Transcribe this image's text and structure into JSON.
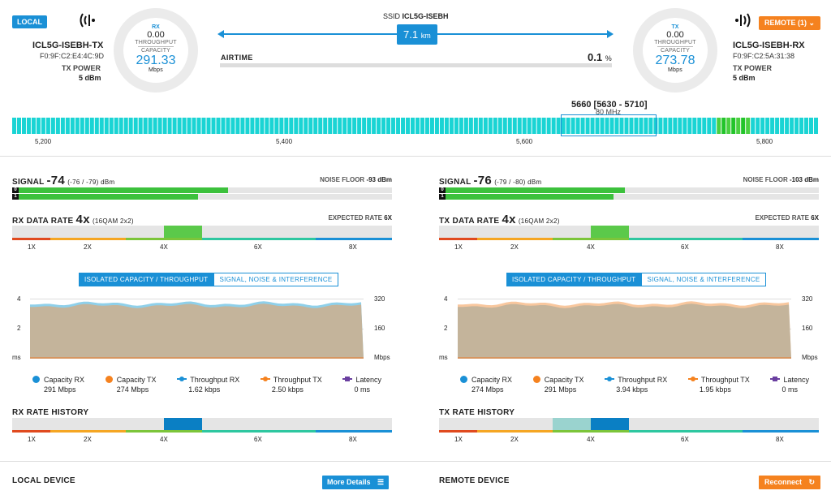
{
  "local": {
    "badge": "LOCAL",
    "name": "ICL5G-ISEBH-TX",
    "mac": "F0:9F:C2:E4:4C:9D",
    "tx_power_label": "TX POWER",
    "tx_power": "5 dBm",
    "gauge": {
      "dir": "RX",
      "throughput": "0.00",
      "throughput_label": "THROUGHPUT",
      "capacity_label": "CAPACITY",
      "capacity": "291.33",
      "unit": "Mbps"
    }
  },
  "remote": {
    "badge": "REMOTE (1)",
    "name": "ICL5G-ISEBH-RX",
    "mac": "F0:9F:C2:5A:31:38",
    "tx_power_label": "TX POWER",
    "tx_power": "5 dBm",
    "gauge": {
      "dir": "TX",
      "throughput": "0.00",
      "throughput_label": "THROUGHPUT",
      "capacity_label": "CAPACITY",
      "capacity": "273.78",
      "unit": "Mbps"
    }
  },
  "link": {
    "ssid_label": "SSID",
    "ssid": "ICL5G-ISEBH",
    "distance": "7.1",
    "distance_unit": "km",
    "airtime_label": "AIRTIME",
    "airtime_value": "0.1",
    "airtime_unit": "%"
  },
  "spectrum": {
    "channel": "5660 [5630 - 5710]",
    "width": "80 MHz",
    "ticks": [
      "5,200",
      "5,400",
      "5,600",
      "5,800"
    ]
  },
  "left": {
    "signal_label": "SIGNAL",
    "signal_value": "-74",
    "signal_detail": "(-76 / -79) dBm",
    "noise_label": "NOISE FLOOR",
    "noise_value": "-93 dBm",
    "chain_fill": [
      0.56,
      0.48
    ],
    "rate_label": "RX DATA RATE",
    "rate_value": "4x",
    "rate_detail": "(16QAM 2x2)",
    "expected_label": "EXPECTED RATE",
    "expected_value": "6X",
    "history_label": "RX RATE HISTORY",
    "legend": [
      {
        "name": "Capacity RX",
        "value": "291 Mbps",
        "color": "#1a90d6"
      },
      {
        "name": "Capacity TX",
        "value": "274 Mbps",
        "color": "#f5821f"
      },
      {
        "name": "Throughput RX",
        "value": "1.62 kbps",
        "color": "#1a90d6"
      },
      {
        "name": "Throughput TX",
        "value": "2.50 kbps",
        "color": "#f5821f"
      },
      {
        "name": "Latency",
        "value": "0 ms",
        "color": "#6a3fa0"
      }
    ]
  },
  "right": {
    "signal_label": "SIGNAL",
    "signal_value": "-76",
    "signal_detail": "(-79 / -80) dBm",
    "noise_label": "NOISE FLOOR",
    "noise_value": "-103 dBm",
    "chain_fill": [
      0.48,
      0.45
    ],
    "rate_label": "TX DATA RATE",
    "rate_value": "4x",
    "rate_detail": "(16QAM 2x2)",
    "expected_label": "EXPECTED RATE",
    "expected_value": "6X",
    "history_label": "TX RATE HISTORY",
    "legend": [
      {
        "name": "Capacity RX",
        "value": "274 Mbps",
        "color": "#1a90d6"
      },
      {
        "name": "Capacity TX",
        "value": "291 Mbps",
        "color": "#f5821f"
      },
      {
        "name": "Throughput RX",
        "value": "3.94 kbps",
        "color": "#1a90d6"
      },
      {
        "name": "Throughput TX",
        "value": "1.95 kbps",
        "color": "#f5821f"
      },
      {
        "name": "Latency",
        "value": "0 ms",
        "color": "#6a3fa0"
      }
    ]
  },
  "rate_labels": [
    "1X",
    "2X",
    "4X",
    "6X",
    "8X"
  ],
  "tabs": {
    "capacity": "ISOLATED CAPACITY / THROUGHPUT",
    "signal": "SIGNAL, NOISE & INTERFERENCE"
  },
  "chart_axes": {
    "left_ticks": [
      "4",
      "2",
      "ms"
    ],
    "right_ticks": [
      "320",
      "160",
      "Mbps"
    ]
  },
  "footer": {
    "local_label": "LOCAL DEVICE",
    "remote_label": "REMOTE DEVICE",
    "details_button": "More Details",
    "reconnect_button": "Reconnect"
  },
  "colors": {
    "accent": "#1a90d6",
    "remote": "#f5821f",
    "signal_green": "#3cc13c",
    "spectrum_cyan": "#1ad4d4",
    "capacity_fill_left": "#c4b49b",
    "capacity_fill_right": "#c4b49b"
  }
}
